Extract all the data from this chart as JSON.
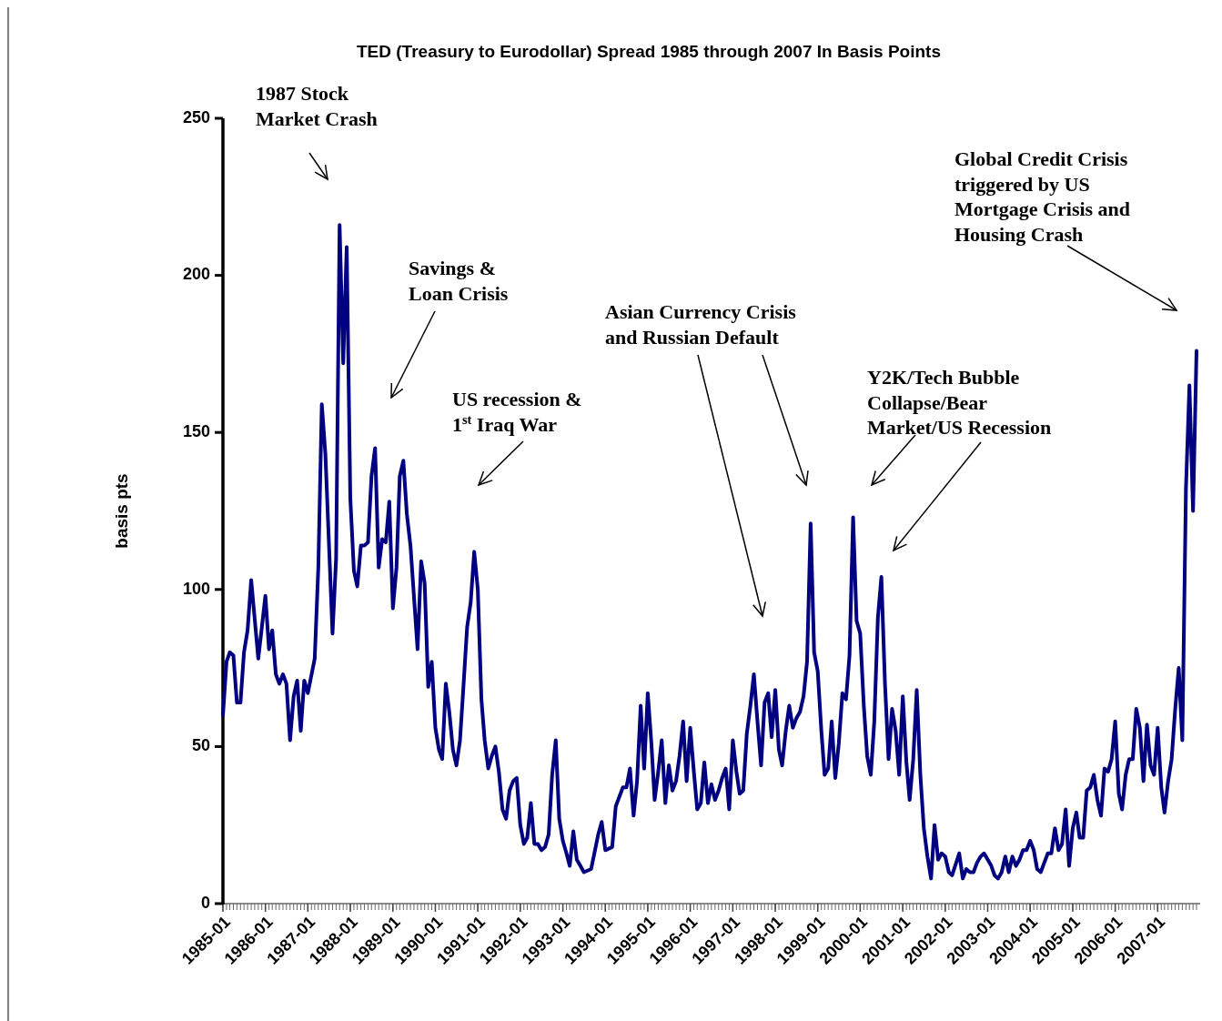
{
  "chart_data": {
    "type": "line",
    "title": "TED (Treasury to Eurodollar) Spread 1985 through 2007 In Basis Points",
    "ylabel": "basis pts",
    "annotations": [
      "1987 Stock\nMarket Crash",
      "Savings &\nLoan Crisis",
      "US recession &\n1$^{st}$ Iraq War",
      "Asian Currency Crisis\nand Russian Default",
      "Y2K/Tech Bubble\nCollapse/Bear\nMarket/US Recession",
      "Global Credit Crisis\ntriggered by US\nMortgage Crisis and\nHousing Crash"
    ],
    "x": [
      "1985-01",
      "1985-02",
      "1985-03",
      "1985-04",
      "1985-05",
      "1985-06",
      "1985-07",
      "1985-08",
      "1985-09",
      "1985-11",
      "1986-01",
      "1986-02",
      "1986-03",
      "1986-04",
      "1986-05",
      "1986-06",
      "1986-07",
      "1986-08",
      "1986-09",
      "1986-10",
      "1986-11",
      "1986-12",
      "1987-01",
      "1987-03",
      "1987-04",
      "1987-05",
      "1987-06",
      "1987-08",
      "1987-09",
      "1987-10",
      "1987-11",
      "1987-12",
      "1988-01",
      "1988-02",
      "1988-03",
      "1988-04",
      "1988-05",
      "1988-06",
      "1988-07",
      "1988-08",
      "1988-09",
      "1988-10",
      "1988-11",
      "1988-12",
      "1989-01",
      "1989-02",
      "1989-03",
      "1989-04",
      "1989-05",
      "1989-06",
      "1989-08",
      "1989-09",
      "1989-10",
      "1989-11",
      "1989-12",
      "1990-01",
      "1990-02",
      "1990-03",
      "1990-04",
      "1990-05",
      "1990-06",
      "1990-07",
      "1990-08",
      "1990-09",
      "1990-10",
      "1990-11",
      "1990-12",
      "1991-01",
      "1991-02",
      "1991-03",
      "1991-04",
      "1991-05",
      "1991-06",
      "1991-07",
      "1991-08",
      "1991-09",
      "1991-10",
      "1991-11",
      "1991-12",
      "1992-01",
      "1992-02",
      "1992-03",
      "1992-04",
      "1992-05",
      "1992-06",
      "1992-07",
      "1992-08",
      "1992-09",
      "1992-10",
      "1992-11",
      "1992-12",
      "1993-01",
      "1993-02",
      "1993-03",
      "1993-04",
      "1993-05",
      "1993-06",
      "1993-07",
      "1993-09",
      "1993-11",
      "1993-12",
      "1994-01",
      "1994-03",
      "1994-04",
      "1994-06",
      "1994-07",
      "1994-08",
      "1994-09",
      "1994-10",
      "1994-11",
      "1994-12",
      "1995-01",
      "1995-02",
      "1995-03",
      "1995-04",
      "1995-05",
      "1995-06",
      "1995-07",
      "1995-08",
      "1995-09",
      "1995-10",
      "1995-11",
      "1995-12",
      "1996-01",
      "1996-02",
      "1996-03",
      "1996-04",
      "1996-05",
      "1996-06",
      "1996-07",
      "1996-08",
      "1996-09",
      "1996-10",
      "1996-11",
      "1996-12",
      "1997-01",
      "1997-02",
      "1997-03",
      "1997-04",
      "1997-05",
      "1997-06",
      "1997-07",
      "1997-08",
      "1997-09",
      "1997-10",
      "1997-11",
      "1997-12",
      "1998-01",
      "1998-02",
      "1998-03",
      "1998-04",
      "1998-05",
      "1998-06",
      "1998-07",
      "1998-08",
      "1998-09",
      "1998-10",
      "1998-11",
      "1998-12",
      "1999-01",
      "1999-02",
      "1999-03",
      "1999-04",
      "1999-05",
      "1999-06",
      "1999-07",
      "1999-08",
      "1999-09",
      "1999-10",
      "1999-11",
      "1999-12",
      "2000-01",
      "2000-02",
      "2000-03",
      "2000-04",
      "2000-05",
      "2000-06",
      "2000-07",
      "2000-08",
      "2000-09",
      "2000-10",
      "2000-11",
      "2000-12",
      "2001-01",
      "2001-02",
      "2001-03",
      "2001-04",
      "2001-05",
      "2001-06",
      "2001-07",
      "2001-08",
      "2001-09",
      "2001-10",
      "2001-11",
      "2001-12",
      "2002-01",
      "2002-02",
      "2002-03",
      "2002-05",
      "2002-06",
      "2002-07",
      "2002-08",
      "2002-09",
      "2002-10",
      "2002-11",
      "2002-12",
      "2003-02",
      "2003-03",
      "2003-04",
      "2003-05",
      "2003-06",
      "2003-07",
      "2003-08",
      "2003-09",
      "2003-10",
      "2003-11",
      "2003-12",
      "2004-01",
      "2004-02",
      "2004-03",
      "2004-04",
      "2004-05",
      "2004-06",
      "2004-07",
      "2004-08",
      "2004-09",
      "2004-10",
      "2004-11",
      "2004-12",
      "2005-01",
      "2005-02",
      "2005-03",
      "2005-04",
      "2005-05",
      "2005-06",
      "2005-07",
      "2005-08",
      "2005-09",
      "2005-10",
      "2005-11",
      "2005-12",
      "2006-01",
      "2006-02",
      "2006-03",
      "2006-04",
      "2006-05",
      "2006-06",
      "2006-07",
      "2006-08",
      "2006-09",
      "2006-10",
      "2006-11",
      "2006-12",
      "2007-01",
      "2007-02",
      "2007-03",
      "2007-04",
      "2007-05",
      "2007-06",
      "2007-07",
      "2007-08",
      "2007-09",
      "2007-10",
      "2007-11",
      "2007-12"
    ],
    "series": [
      {
        "color": "#000080",
        "values": [
          60,
          77,
          80,
          79,
          64,
          64,
          80,
          87,
          103,
          78,
          98,
          81,
          87,
          73,
          70,
          73,
          70,
          52,
          66,
          71,
          55,
          71,
          67,
          78,
          107,
          159,
          143,
          86,
          110,
          216,
          172,
          209,
          129,
          106,
          101,
          114,
          114,
          115,
          136,
          145,
          107,
          116,
          115,
          128,
          94,
          107,
          136,
          141,
          124,
          114,
          81,
          109,
          102,
          69,
          77,
          56,
          49,
          46,
          70,
          61,
          49,
          44,
          52,
          70,
          88,
          96,
          112,
          100,
          65,
          52,
          43,
          47,
          50,
          42,
          30,
          27,
          36,
          39,
          40,
          25,
          19,
          21,
          32,
          19,
          19,
          17,
          18,
          22,
          41,
          52,
          27,
          20,
          16,
          12,
          23,
          14,
          12,
          10,
          11,
          22,
          26,
          17,
          18,
          31,
          37,
          37,
          43,
          28,
          39,
          63,
          43,
          67,
          51,
          33,
          42,
          52,
          32,
          44,
          36,
          39,
          47,
          58,
          39,
          56,
          42,
          30,
          32,
          45,
          32,
          38,
          33,
          36,
          40,
          43,
          30,
          52,
          42,
          35,
          36,
          54,
          63,
          73,
          58,
          44,
          64,
          67,
          53,
          68,
          49,
          44,
          55,
          63,
          56,
          59,
          61,
          66,
          77,
          121,
          80,
          74,
          55,
          41,
          43,
          58,
          40,
          51,
          67,
          65,
          79,
          123,
          90,
          86,
          63,
          47,
          41,
          58,
          91,
          104,
          70,
          46,
          62,
          55,
          41,
          66,
          45,
          33,
          46,
          68,
          41,
          24,
          15,
          8,
          25,
          14,
          16,
          15,
          10,
          9,
          16,
          8,
          11,
          10,
          10,
          13,
          15,
          16,
          12,
          9,
          8,
          10,
          15,
          10,
          15,
          12,
          14,
          17,
          17,
          20,
          17,
          11,
          10,
          13,
          16,
          16,
          24,
          17,
          19,
          30,
          12,
          24,
          29,
          21,
          21,
          36,
          37,
          41,
          33,
          28,
          43,
          42,
          46,
          58,
          35,
          30,
          41,
          46,
          46,
          62,
          56,
          39,
          57,
          44,
          41,
          56,
          37,
          29,
          39,
          46,
          62,
          75,
          52,
          132,
          165,
          125,
          176
        ]
      }
    ],
    "xlim": [
      "1985-01",
      "2007-12"
    ],
    "xticks": [
      "1985-01",
      "1986-01",
      "1987-01",
      "1988-01",
      "1989-01",
      "1990-01",
      "1991-01",
      "1992-01",
      "1993-01",
      "1994-01",
      "1995-01",
      "1996-01",
      "1997-01",
      "1998-01",
      "1999-01",
      "2000-01",
      "2001-01",
      "2002-01",
      "2003-01",
      "2004-01",
      "2005-01",
      "2006-01",
      "2007-01"
    ],
    "ylim": [
      0,
      250
    ],
    "yticks": [
      0,
      50,
      100,
      150,
      200,
      250
    ]
  }
}
